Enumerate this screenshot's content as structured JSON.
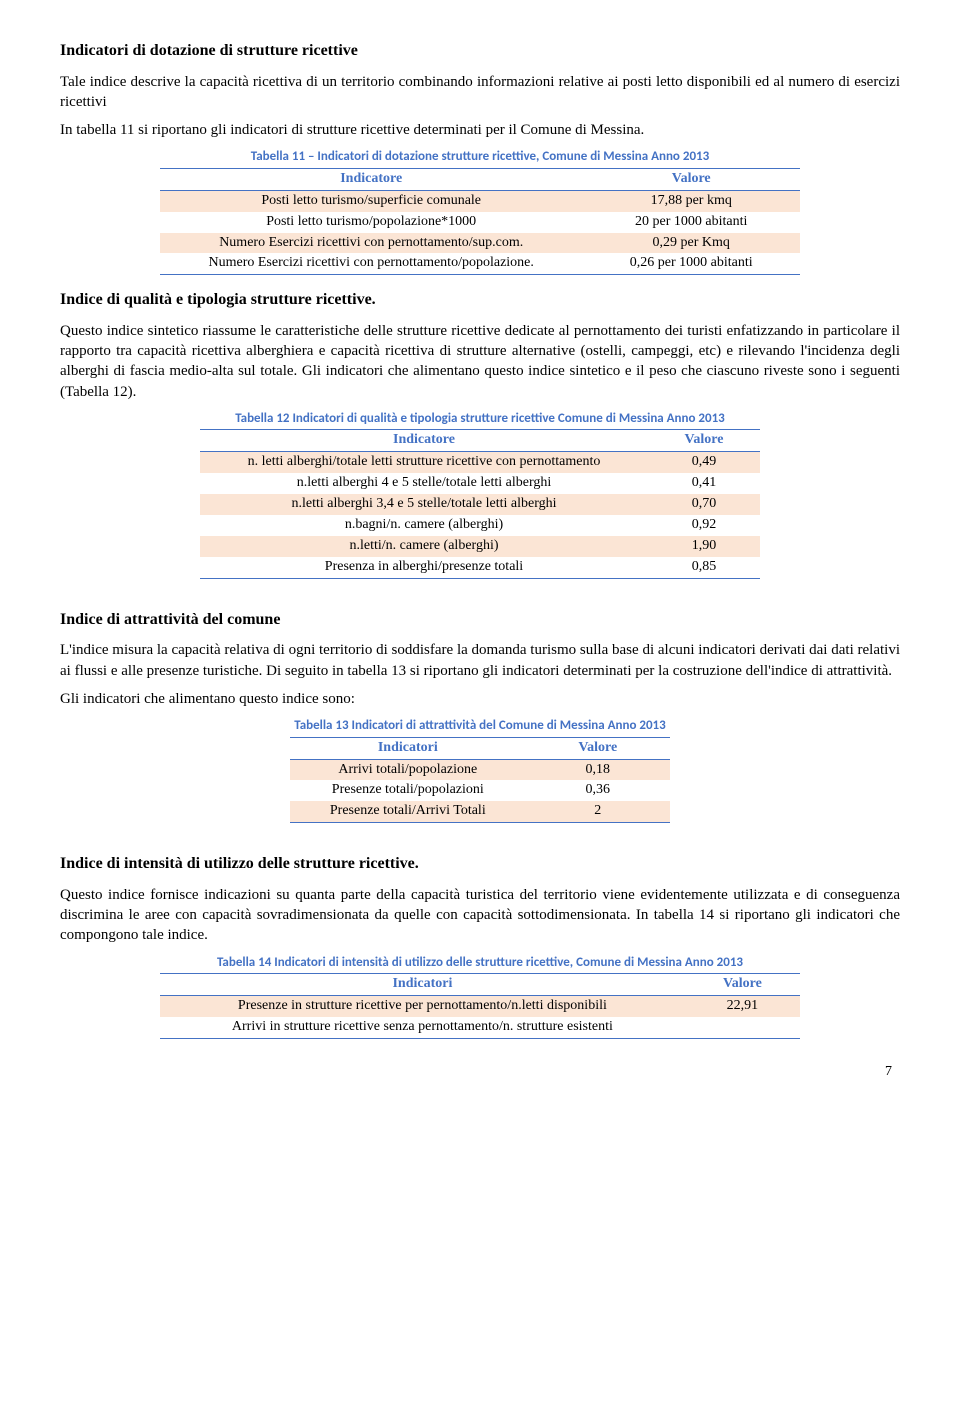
{
  "sec1": {
    "title": "Indicatori di dotazione di strutture ricettive",
    "p1": "Tale indice descrive la capacità ricettiva di un territorio combinando informazioni relative ai posti letto disponibili ed al numero di esercizi ricettivi",
    "p2": "In tabella 11 si riportano gli indicatori di strutture ricettive determinati per il Comune di Messina."
  },
  "t11": {
    "caption": "Tabella 11 – Indicatori di dotazione strutture ricettive, Comune di Messina Anno 2013",
    "h1": "Indicatore",
    "h2": "Valore",
    "r1c1": "Posti letto turismo/superficie comunale",
    "r1c2": "17,88 per kmq",
    "r2c1": "Posti letto turismo/popolazione*1000",
    "r2c2": "20 per 1000 abitanti",
    "r3c1": "Numero Esercizi ricettivi con pernottamento/sup.com.",
    "r3c2": "0,29 per Kmq",
    "r4c1": "Numero Esercizi ricettivi con pernottamento/popolazione.",
    "r4c2": "0,26 per 1000 abitanti"
  },
  "sec2": {
    "title": "Indice di qualità e tipologia strutture ricettive.",
    "p1": "Questo indice sintetico riassume le caratteristiche delle strutture ricettive dedicate al pernottamento dei turisti enfatizzando in particolare il rapporto tra capacità ricettiva alberghiera e capacità ricettiva di strutture alternative (ostelli, campeggi, etc) e rilevando l'incidenza degli alberghi di fascia medio-alta sul totale. Gli indicatori che alimentano questo indice sintetico e il peso che ciascuno riveste sono i seguenti (Tabella 12)."
  },
  "t12": {
    "caption": "Tabella 12 Indicatori di qualità e tipologia strutture ricettive Comune di Messina Anno 2013",
    "h1": "Indicatore",
    "h2": "Valore",
    "r1c1": "n. letti alberghi/totale letti strutture ricettive con pernottamento",
    "r1c2": "0,49",
    "r2c1": "n.letti alberghi 4 e 5 stelle/totale letti alberghi",
    "r2c2": "0,41",
    "r3c1": "n.letti alberghi 3,4 e 5 stelle/totale letti alberghi",
    "r3c2": "0,70",
    "r4c1": "n.bagni/n. camere (alberghi)",
    "r4c2": "0,92",
    "r5c1": "n.letti/n. camere (alberghi)",
    "r5c2": "1,90",
    "r6c1": "Presenza in alberghi/presenze totali",
    "r6c2": "0,85"
  },
  "sec3": {
    "title": "Indice di attrattività del comune",
    "p1": "L'indice misura la capacità relativa di ogni territorio di soddisfare la domanda turismo sulla base di alcuni indicatori derivati dai dati relativi ai flussi e alle presenze turistiche. Di seguito in tabella 13 si riportano gli indicatori determinati per la costruzione dell'indice di attrattività.",
    "p2": "Gli indicatori che alimentano questo indice sono:"
  },
  "t13": {
    "caption": "Tabella 13 Indicatori di attrattività del Comune di Messina Anno 2013",
    "h1": "Indicatori",
    "h2": "Valore",
    "r1c1": "Arrivi totali/popolazione",
    "r1c2": "0,18",
    "r2c1": "Presenze totali/popolazioni",
    "r2c2": "0,36",
    "r3c1": "Presenze totali/Arrivi Totali",
    "r3c2": "2"
  },
  "sec4": {
    "title": "Indice di intensità di utilizzo delle strutture ricettive.",
    "p1": "Questo indice fornisce indicazioni su quanta parte della capacità turistica del territorio viene evidentemente utilizzata e di conseguenza discrimina le aree con capacità sovradimensionata da quelle con capacità sottodimensionata. In tabella 14 si riportano gli indicatori che compongono tale indice."
  },
  "t14": {
    "caption": "Tabella 14 Indicatori di intensità di utilizzo delle strutture ricettive, Comune di Messina Anno 2013",
    "h1": "Indicatori",
    "h2": "Valore",
    "r1c1": "Presenze in strutture ricettive per pernottamento/n.letti disponibili",
    "r1c2": "22,91",
    "r2c1": "Arrivi in strutture ricettive senza pernottamento/n. strutture esistenti",
    "r2c2": ""
  },
  "page": "7",
  "style": {
    "header_color": "#4472c4",
    "band_color": "#fbe5d5",
    "caption_color": "#4472c4",
    "text_color": "#000000",
    "bg": "#ffffff"
  }
}
